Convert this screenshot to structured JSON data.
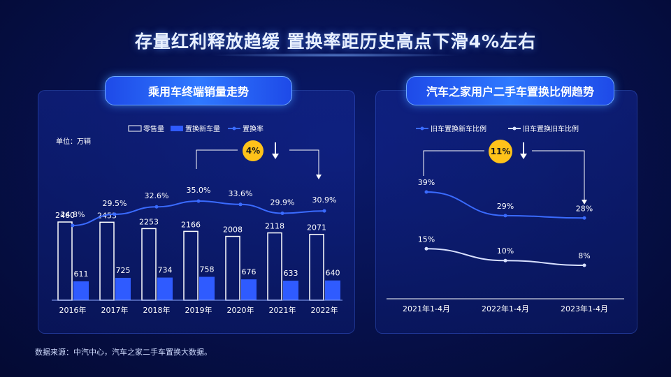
{
  "title": "存量红利释放趋缓  置换率距历史高点下滑4%左右",
  "footer": "数据来源：中汽中心，汽车之家二手车置换大数据。",
  "colors": {
    "accent": "#2f5bff",
    "bar_outline": "#ffffff",
    "line_left": "#3a6bff",
    "line_right_1": "#3a6bff",
    "line_right_2": "#d8e0ff",
    "badge": "#ffc21a"
  },
  "chart_data": [
    {
      "type": "bar",
      "title": "乘用车终端销量走势",
      "unit_label": "单位：万辆",
      "categories": [
        "2016年",
        "2017年",
        "2018年",
        "2019年",
        "2020年",
        "2021年",
        "2022年"
      ],
      "series": [
        {
          "name": "零售量",
          "kind": "bar",
          "style": "outline",
          "values": [
            2460,
            2453,
            2253,
            2166,
            2008,
            2118,
            2071
          ]
        },
        {
          "name": "置换新车量",
          "kind": "bar",
          "style": "filled",
          "values": [
            611,
            725,
            734,
            758,
            676,
            633,
            640
          ]
        },
        {
          "name": "置换率",
          "kind": "line",
          "values": [
            24.8,
            29.5,
            32.6,
            35.0,
            33.6,
            29.9,
            30.9
          ],
          "labels": [
            "24.8%",
            "29.5%",
            "32.6%",
            "35.0%",
            "33.6%",
            "29.9%",
            "30.9%"
          ]
        }
      ],
      "annotation": {
        "badge": "4%",
        "arrow": "down",
        "from_category": "2019年",
        "to_category": "2022年"
      },
      "legend_position": "top"
    },
    {
      "type": "line",
      "title": "汽车之家用户二手车置换比例趋势",
      "categories": [
        "2021年1-4月",
        "2022年1-4月",
        "2023年1-4月"
      ],
      "series": [
        {
          "name": "旧车置换新车比例",
          "values": [
            39,
            29,
            28
          ],
          "labels": [
            "39%",
            "29%",
            "28%"
          ]
        },
        {
          "name": "旧车置换旧车比例",
          "values": [
            15,
            10,
            8
          ],
          "labels": [
            "15%",
            "10%",
            "8%"
          ]
        }
      ],
      "annotation": {
        "badge": "11%",
        "arrow": "down",
        "from_category": "2021年1-4月",
        "to_category": "2023年1-4月"
      },
      "legend_position": "top"
    }
  ]
}
